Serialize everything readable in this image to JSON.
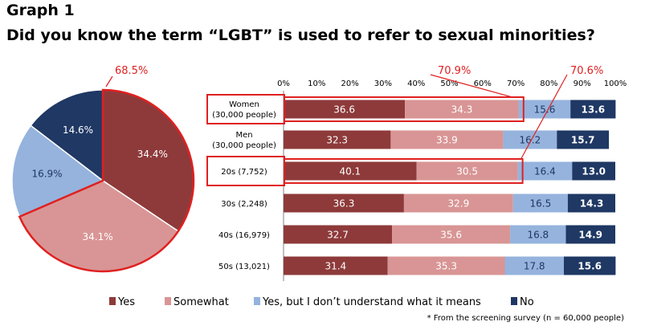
{
  "graph_number": "Graph 1",
  "title": "Did you know the term “LGBT” is used to refer to sexual minorities?",
  "footnote": "* From the screening survey (n = 60,000 people)",
  "colors": {
    "yes": "#8e3a3a",
    "somewhat": "#d99595",
    "yes_but": "#95b3dd",
    "no": "#1f3864",
    "highlight": "#e02020"
  },
  "chart_data": [
    {
      "type": "pie",
      "categories": [
        "Yes",
        "Somewhat",
        "Yes, but I don’t understand what it means",
        "No"
      ],
      "values": [
        34.4,
        34.1,
        16.9,
        14.6
      ],
      "labels": [
        "34.4%",
        "34.1%",
        "16.9%",
        "14.6%"
      ],
      "callout": "68.5%"
    },
    {
      "type": "bar",
      "orientation": "horizontal",
      "stacked": true,
      "x_axis_ticks": [
        "0%",
        "10%",
        "20%",
        "30%",
        "40%",
        "50%",
        "60%",
        "70%",
        "80%",
        "90%",
        "100%"
      ],
      "xlim": [
        0,
        100
      ],
      "categories": [
        [
          "Women",
          "(30,000 people)"
        ],
        [
          "Men",
          "(30,000 people)"
        ],
        [
          "20s (7,752)"
        ],
        [
          "30s (2,248)"
        ],
        [
          "40s (16,979)"
        ],
        [
          "50s (13,021)"
        ]
      ],
      "series": [
        {
          "name": "Yes",
          "values": [
            36.6,
            32.3,
            40.1,
            36.3,
            32.7,
            31.4
          ],
          "labels": [
            "36.6",
            "32.3",
            "40.1",
            "36.3",
            "32.7",
            "31.4"
          ]
        },
        {
          "name": "Somewhat",
          "values": [
            34.3,
            33.9,
            30.5,
            32.9,
            35.6,
            35.3
          ],
          "labels": [
            "34.3",
            "33.9",
            "30.5",
            "32.9",
            "35.6",
            "35.3"
          ]
        },
        {
          "name": "Yes, but I don’t understand what it means",
          "values": [
            15.6,
            16.2,
            16.4,
            16.5,
            16.8,
            17.8
          ],
          "labels": [
            "15.6",
            "16.2",
            "16.4",
            "16.5",
            "16.8",
            "17.8"
          ]
        },
        {
          "name": "No",
          "values": [
            13.6,
            15.7,
            13.0,
            14.3,
            14.9,
            15.6
          ],
          "labels": [
            "13.6",
            "15.7",
            "13.0",
            "14.3",
            "14.9",
            "15.6"
          ]
        }
      ],
      "highlighted_rows": [
        0,
        2
      ],
      "annotations": [
        {
          "text": "70.9%",
          "row": 0,
          "x": 70.9
        },
        {
          "text": "70.6%",
          "row": 2,
          "x": 70.6
        }
      ],
      "legend_position": "bottom"
    }
  ]
}
